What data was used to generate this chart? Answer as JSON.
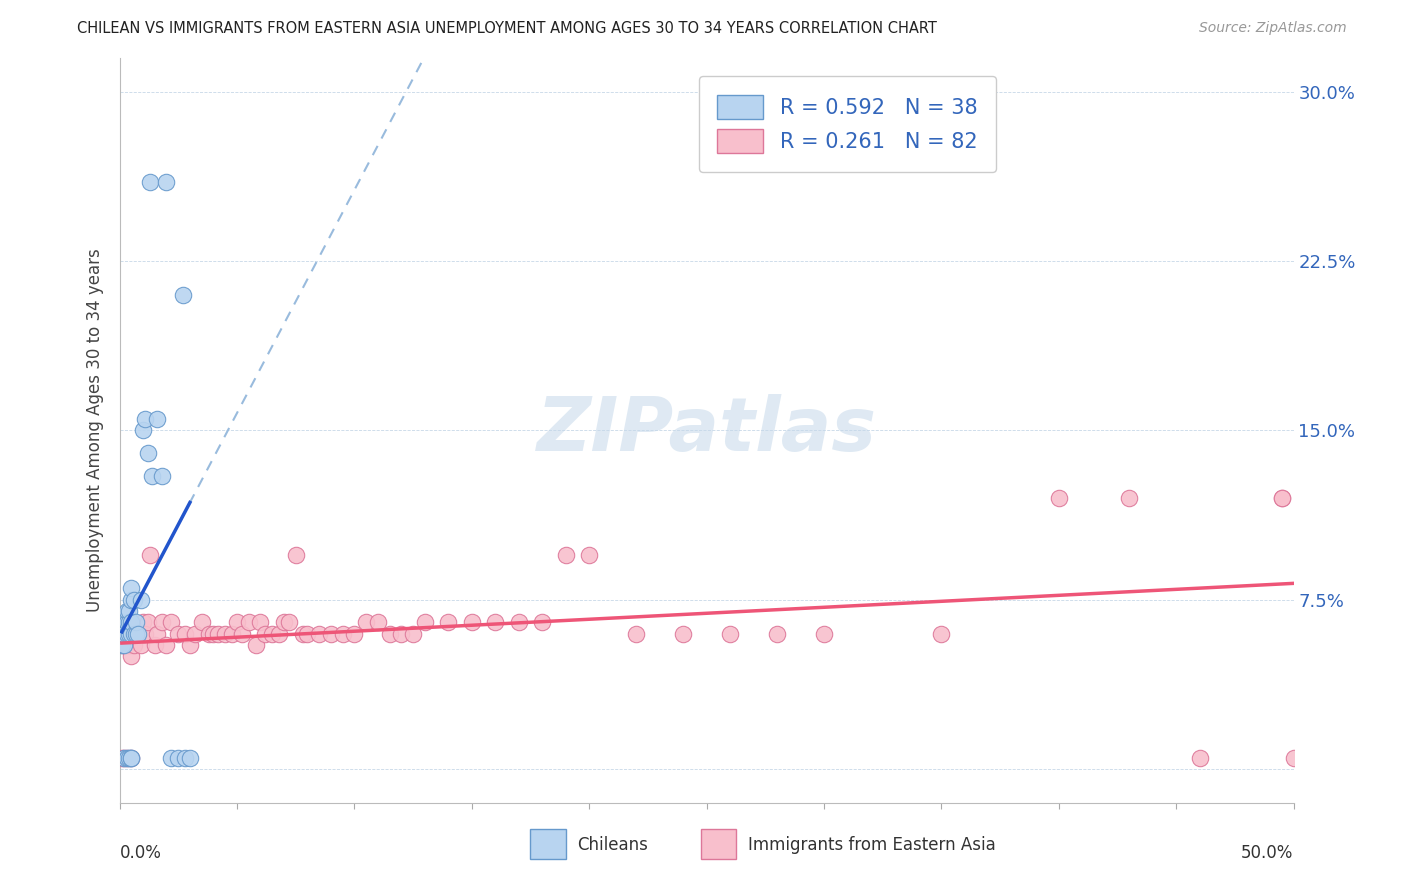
{
  "title": "CHILEAN VS IMMIGRANTS FROM EASTERN ASIA UNEMPLOYMENT AMONG AGES 30 TO 34 YEARS CORRELATION CHART",
  "source": "Source: ZipAtlas.com",
  "ylabel": "Unemployment Among Ages 30 to 34 years",
  "xlim": [
    0.0,
    0.5
  ],
  "ylim": [
    -0.015,
    0.315
  ],
  "legend_blue_r": "0.592",
  "legend_blue_n": "38",
  "legend_pink_r": "0.261",
  "legend_pink_n": "82",
  "blue_face": "#b8d4f0",
  "blue_edge": "#6699cc",
  "pink_face": "#f8bfcc",
  "pink_edge": "#dd7799",
  "blue_line": "#2255cc",
  "pink_line": "#ee5577",
  "blue_dash": "#99bbdd",
  "grid_color": "#c8d8e8",
  "right_tick_color": "#3366bb",
  "watermark": "ZIPatlas",
  "blue_x": [
    0.001,
    0.001,
    0.002,
    0.002,
    0.002,
    0.003,
    0.003,
    0.003,
    0.003,
    0.004,
    0.004,
    0.004,
    0.004,
    0.005,
    0.005,
    0.005,
    0.005,
    0.005,
    0.005,
    0.006,
    0.006,
    0.007,
    0.007,
    0.008,
    0.009,
    0.01,
    0.011,
    0.012,
    0.013,
    0.014,
    0.016,
    0.018,
    0.02,
    0.022,
    0.025,
    0.027,
    0.028,
    0.03
  ],
  "blue_y": [
    0.055,
    0.065,
    0.055,
    0.06,
    0.005,
    0.06,
    0.065,
    0.07,
    0.005,
    0.06,
    0.065,
    0.07,
    0.005,
    0.06,
    0.065,
    0.075,
    0.08,
    0.005,
    0.005,
    0.06,
    0.075,
    0.06,
    0.065,
    0.06,
    0.075,
    0.15,
    0.155,
    0.14,
    0.26,
    0.13,
    0.155,
    0.13,
    0.26,
    0.005,
    0.005,
    0.21,
    0.005,
    0.005
  ],
  "pink_x": [
    0.001,
    0.001,
    0.001,
    0.002,
    0.002,
    0.003,
    0.003,
    0.003,
    0.004,
    0.004,
    0.005,
    0.005,
    0.005,
    0.005,
    0.005,
    0.006,
    0.006,
    0.007,
    0.008,
    0.009,
    0.01,
    0.01,
    0.011,
    0.012,
    0.013,
    0.015,
    0.016,
    0.018,
    0.02,
    0.022,
    0.025,
    0.028,
    0.03,
    0.032,
    0.035,
    0.038,
    0.04,
    0.042,
    0.045,
    0.048,
    0.05,
    0.052,
    0.055,
    0.058,
    0.06,
    0.062,
    0.065,
    0.068,
    0.07,
    0.072,
    0.075,
    0.078,
    0.08,
    0.085,
    0.09,
    0.095,
    0.1,
    0.105,
    0.11,
    0.115,
    0.12,
    0.125,
    0.13,
    0.14,
    0.15,
    0.16,
    0.17,
    0.18,
    0.19,
    0.2,
    0.22,
    0.24,
    0.26,
    0.28,
    0.3,
    0.35,
    0.4,
    0.43,
    0.46,
    0.495,
    0.495,
    0.5
  ],
  "pink_y": [
    0.055,
    0.06,
    0.005,
    0.055,
    0.005,
    0.055,
    0.06,
    0.005,
    0.06,
    0.055,
    0.06,
    0.065,
    0.005,
    0.055,
    0.05,
    0.06,
    0.055,
    0.06,
    0.06,
    0.055,
    0.065,
    0.06,
    0.06,
    0.065,
    0.095,
    0.055,
    0.06,
    0.065,
    0.055,
    0.065,
    0.06,
    0.06,
    0.055,
    0.06,
    0.065,
    0.06,
    0.06,
    0.06,
    0.06,
    0.06,
    0.065,
    0.06,
    0.065,
    0.055,
    0.065,
    0.06,
    0.06,
    0.06,
    0.065,
    0.065,
    0.095,
    0.06,
    0.06,
    0.06,
    0.06,
    0.06,
    0.06,
    0.065,
    0.065,
    0.06,
    0.06,
    0.06,
    0.065,
    0.065,
    0.065,
    0.065,
    0.065,
    0.065,
    0.095,
    0.095,
    0.06,
    0.06,
    0.06,
    0.06,
    0.06,
    0.06,
    0.12,
    0.12,
    0.005,
    0.12,
    0.12,
    0.005
  ]
}
